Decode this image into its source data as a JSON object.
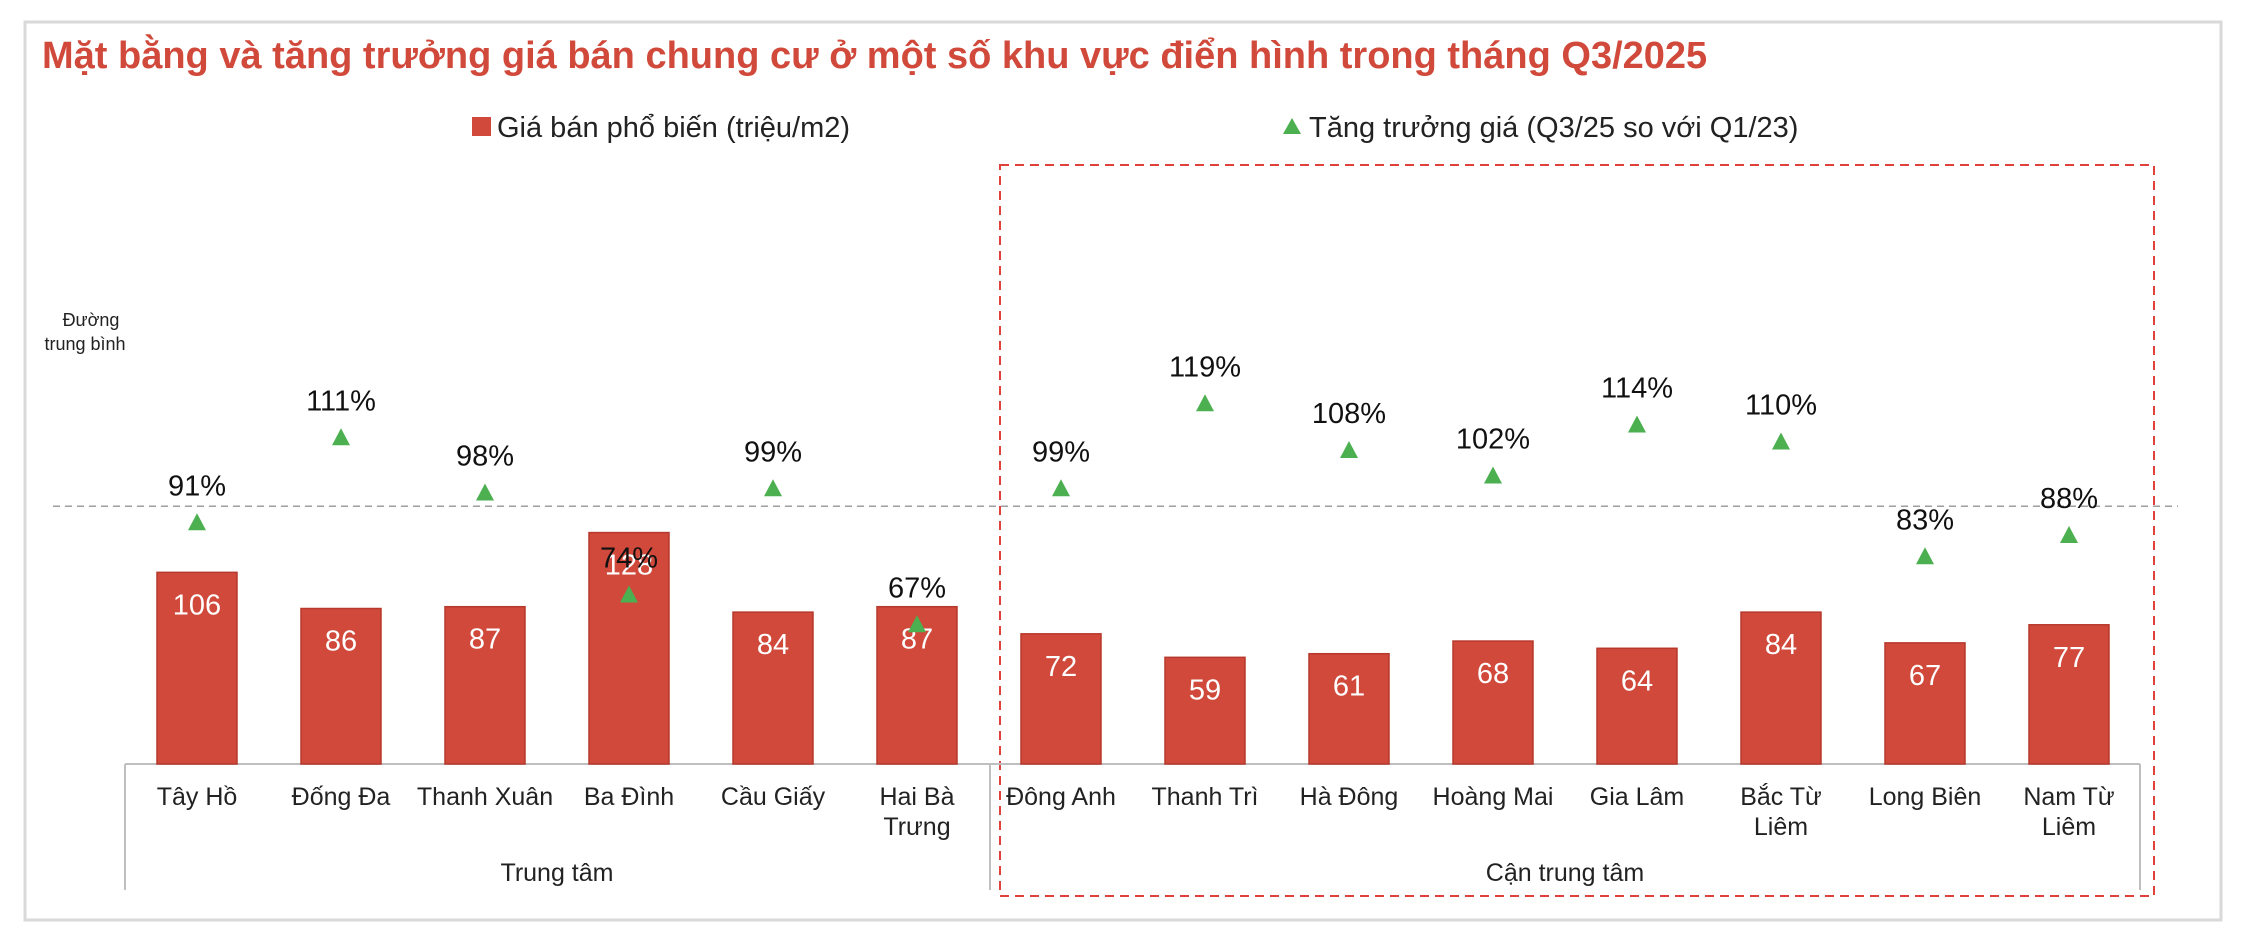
{
  "colors": {
    "bar": "#D0493B",
    "bar_edge": "#B7382C",
    "marker": "#4CAF50",
    "title": "#D0493B",
    "frame": "#D9D9D9",
    "dashed_box": "#E0413A",
    "avg_line": "#9E9E9E",
    "axis": "#BFBFBF"
  },
  "chart_data": {
    "type": "bar",
    "title": "Mặt bằng và tăng trưởng giá bán chung cư ở một số khu vực điển hình trong tháng Q3/2025",
    "legend": {
      "placement": "top",
      "entries": [
        "Giá bán phổ biến (triệu/m2)",
        "Tăng trưởng giá (Q3/25 so với Q1/23)"
      ]
    },
    "average_line_label": [
      "Đường",
      "trung bình"
    ],
    "categories": [
      [
        "Tây Hồ"
      ],
      [
        "Đống Đa"
      ],
      [
        "Thanh Xuân"
      ],
      [
        "Ba Đình"
      ],
      [
        "Cầu Giấy"
      ],
      [
        "Hai Bà",
        "Trưng"
      ],
      [
        "Đông Anh"
      ],
      [
        "Thanh Trì"
      ],
      [
        "Hà Đông"
      ],
      [
        "Hoàng Mai"
      ],
      [
        "Gia Lâm"
      ],
      [
        "Bắc Từ",
        "Liêm"
      ],
      [
        "Long Biên"
      ],
      [
        "Nam Từ",
        "Liêm"
      ]
    ],
    "groups": [
      {
        "label": "Trung tâm",
        "start": 0,
        "end": 5
      },
      {
        "label": "Cận trung tâm",
        "start": 6,
        "end": 13
      }
    ],
    "series": [
      {
        "name": "Giá bán phổ biến (triệu/m2)",
        "kind": "bar",
        "values": [
          106,
          86,
          87,
          128,
          84,
          87,
          72,
          59,
          61,
          68,
          64,
          84,
          67,
          77
        ],
        "labels": [
          "106",
          "86",
          "87",
          "128",
          "84",
          "87",
          "72",
          "59",
          "61",
          "68",
          "64",
          "84",
          "67",
          "77"
        ]
      },
      {
        "name": "Tăng trưởng giá (Q3/25 so với Q1/23)",
        "kind": "marker",
        "values": [
          91,
          111,
          98,
          74,
          99,
          67,
          99,
          119,
          108,
          102,
          114,
          110,
          83,
          88
        ],
        "labels": [
          "91%",
          "111%",
          "98%",
          "74%",
          "99%",
          "67%",
          "99%",
          "119%",
          "108%",
          "102%",
          "114%",
          "110%",
          "83%",
          "88%"
        ]
      }
    ],
    "average_growth": 95,
    "bar_ylim": [
      0,
      160
    ],
    "growth_ylim": [
      0,
      130
    ]
  }
}
